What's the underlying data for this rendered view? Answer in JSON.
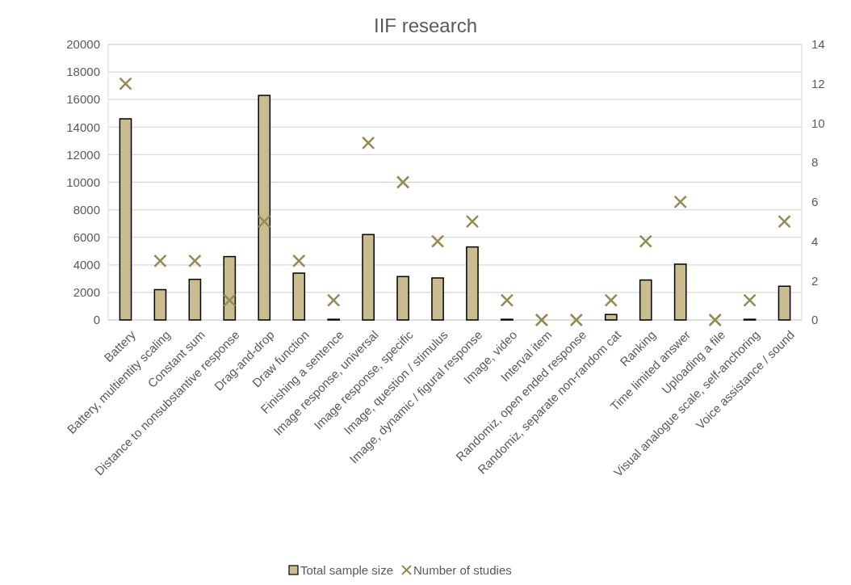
{
  "chart_data": {
    "type": "bar",
    "title": "IIF research",
    "categories": [
      "Battery",
      "Battery, multientity scaling",
      "Constant sum",
      "Distance to nonsubstantive response",
      "Drag-and-drop",
      "Draw function",
      "Finishing a sentence",
      "Image response, universal",
      "Image response, specific",
      "Image, question / stimulus",
      "Image, dynamic / figural response",
      "Image, video",
      "Interval item",
      "Randomiz, open ended response",
      "Randomiz, separate non-random cat",
      "Ranking",
      "Time limited answer",
      "Uploading a file",
      "Visual analogue scale, self-anchoring",
      "Voice assistance / sound"
    ],
    "series": [
      {
        "name": "Total sample size",
        "color": "#c9bc8e",
        "values": [
          14600,
          2200,
          2950,
          4600,
          16300,
          3400,
          50,
          6200,
          3150,
          3050,
          5300,
          50,
          0,
          0,
          400,
          2900,
          4050,
          0,
          50,
          2450
        ]
      },
      {
        "name": "Number of studies",
        "type": "scatter",
        "axis": "y2",
        "marker": "cross",
        "color": "#948a54",
        "values": [
          12,
          3,
          3,
          1,
          5,
          3,
          1,
          9,
          7,
          4,
          5,
          1,
          0,
          0,
          1,
          4,
          6,
          0,
          1,
          5
        ]
      }
    ],
    "ylim": [
      0,
      20000
    ],
    "yticks": [
      0,
      2000,
      4000,
      6000,
      8000,
      10000,
      12000,
      14000,
      16000,
      18000,
      20000
    ],
    "y2lim": [
      0,
      14
    ],
    "y2ticks": [
      0,
      2,
      4,
      6,
      8,
      10,
      12,
      14
    ],
    "grid": "y",
    "legend": "bottom"
  }
}
